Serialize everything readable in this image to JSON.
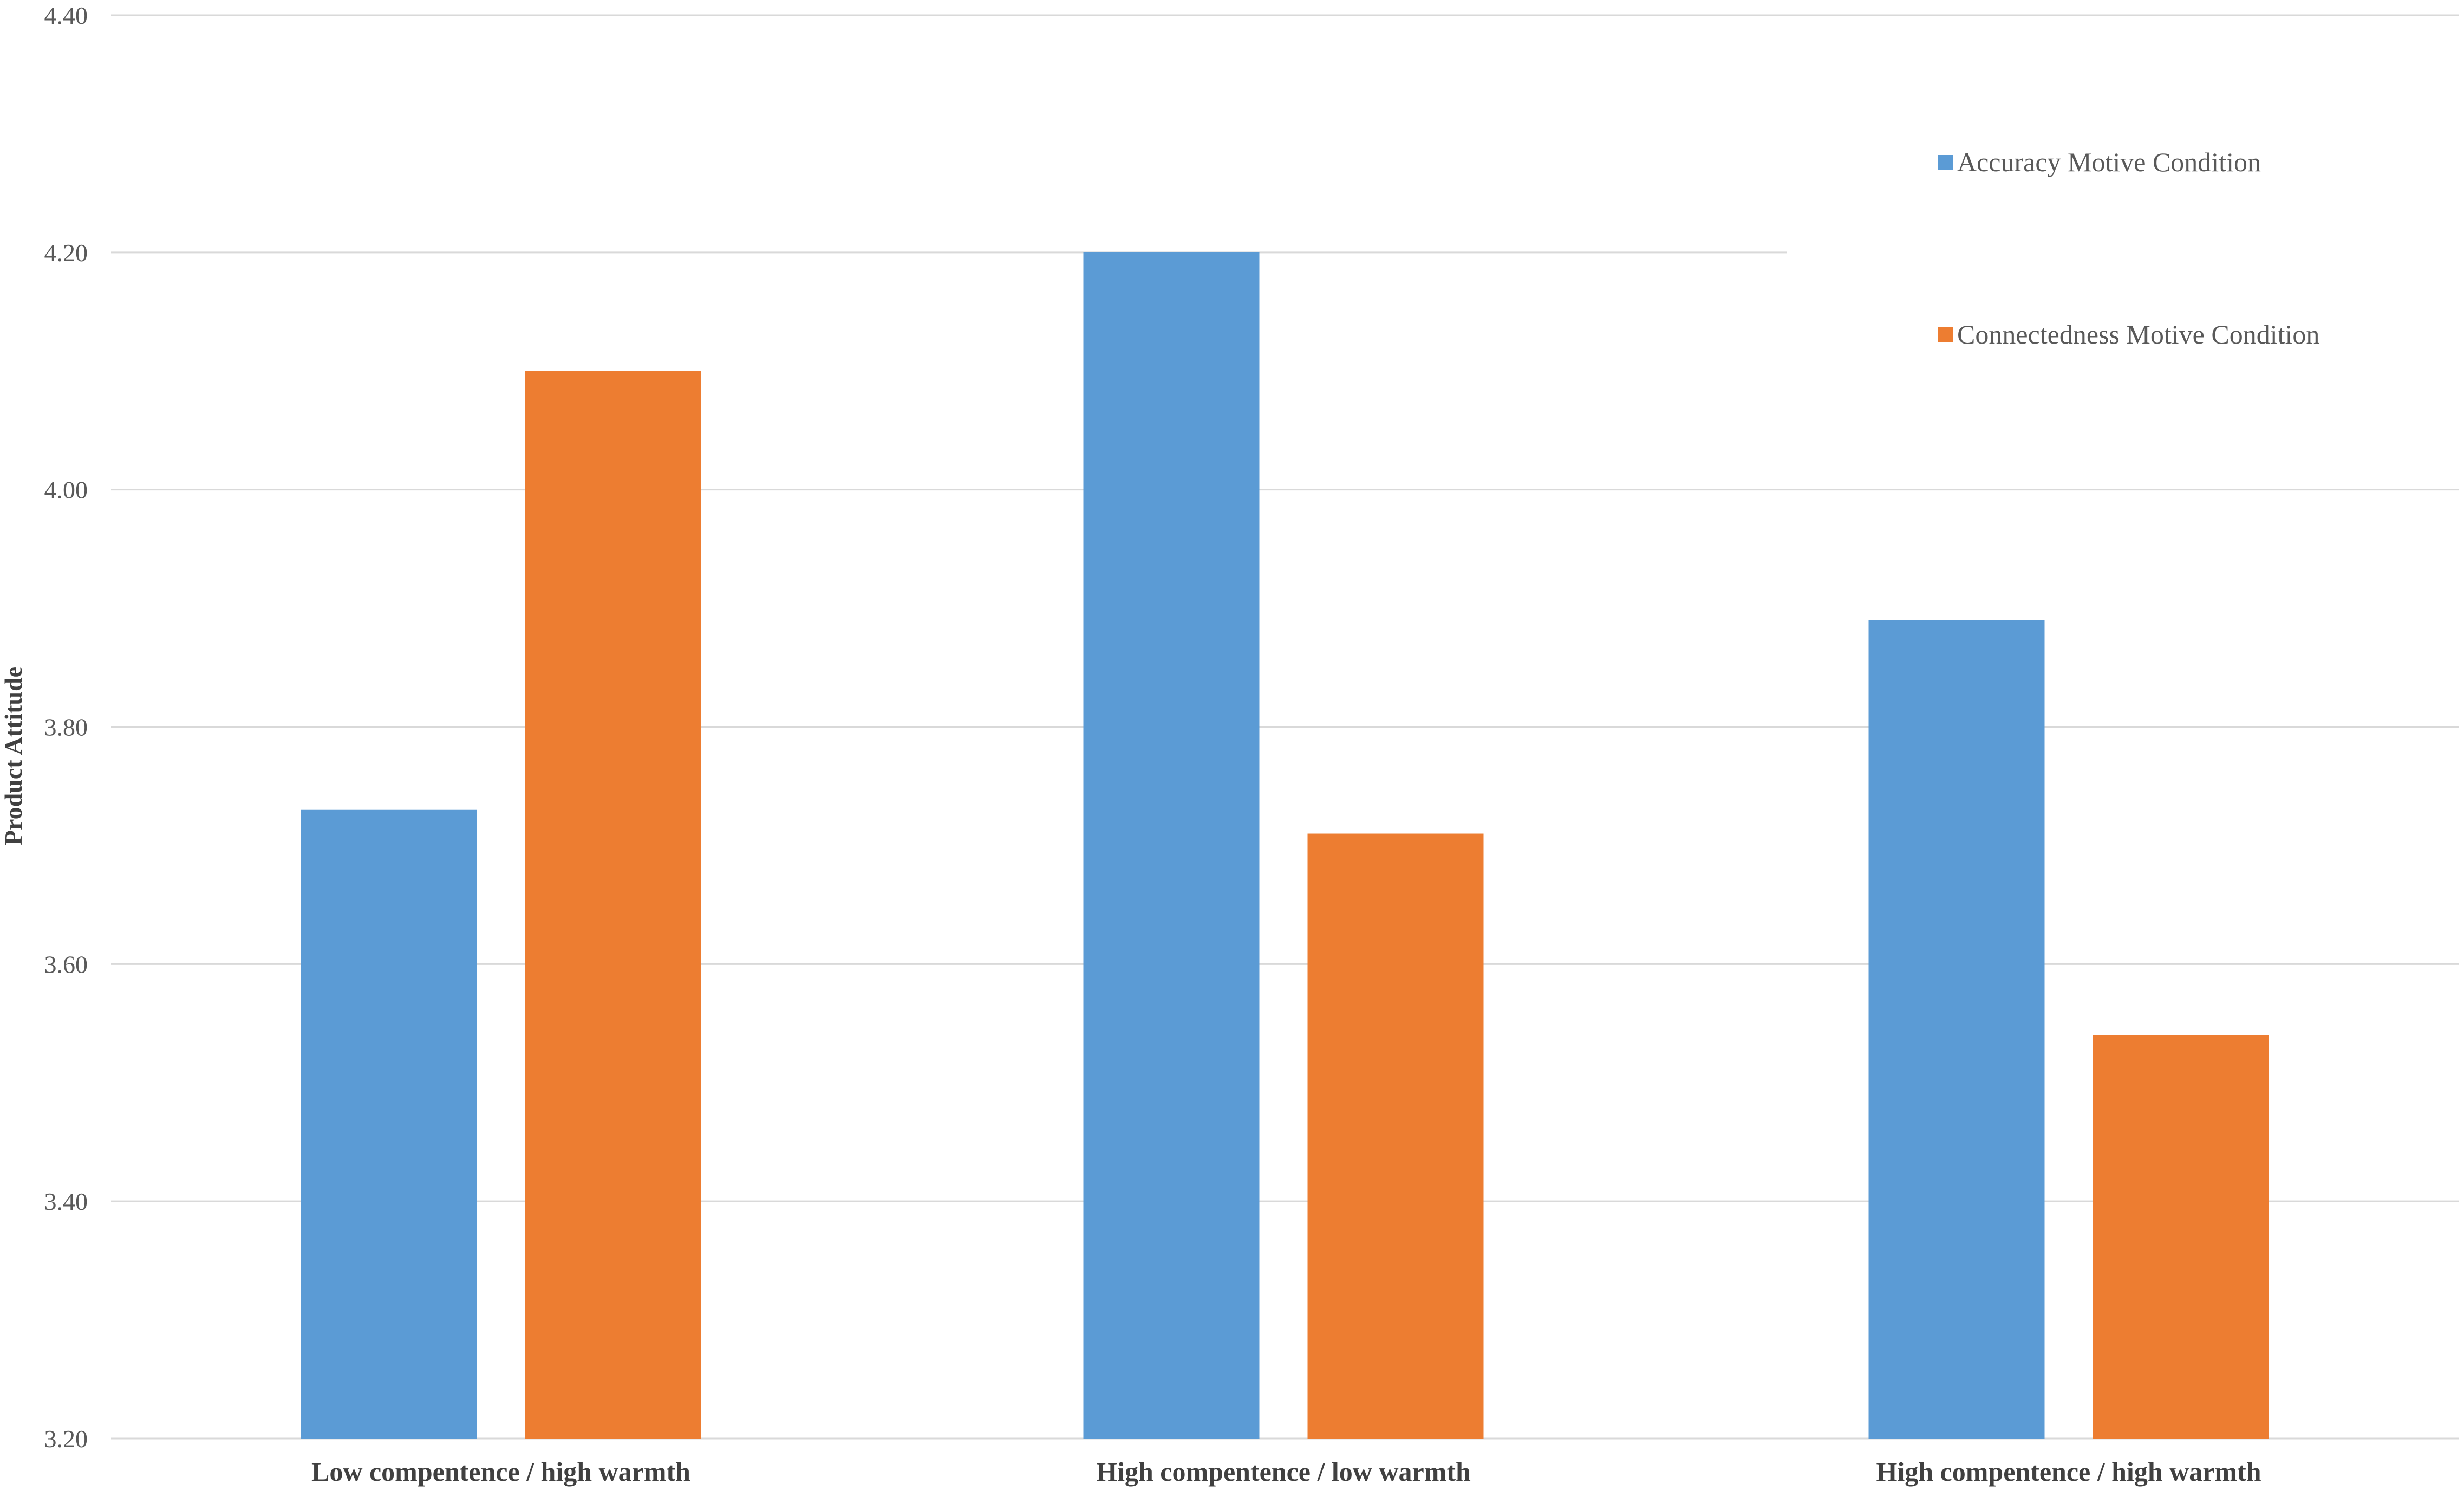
{
  "chart_data": {
    "type": "bar",
    "title": "",
    "xlabel": "",
    "ylabel": "Product  Attitude",
    "categories": [
      "Low compentence / high warmth",
      "High compentence / low warmth",
      "High compentence / high warmth"
    ],
    "series": [
      {
        "name": "Accuracy Motive Condition",
        "color": "#5B9BD5",
        "values": [
          3.73,
          4.2,
          3.89
        ]
      },
      {
        "name": "Connectedness Motive Condition",
        "color": "#ED7D31",
        "values": [
          4.1,
          3.71,
          3.54
        ]
      }
    ],
    "ylim": [
      3.2,
      4.4
    ],
    "yticks": [
      "3.20",
      "3.40",
      "3.60",
      "3.80",
      "4.00",
      "4.20",
      "4.40"
    ],
    "grid": true,
    "legend_position": "top-right"
  }
}
